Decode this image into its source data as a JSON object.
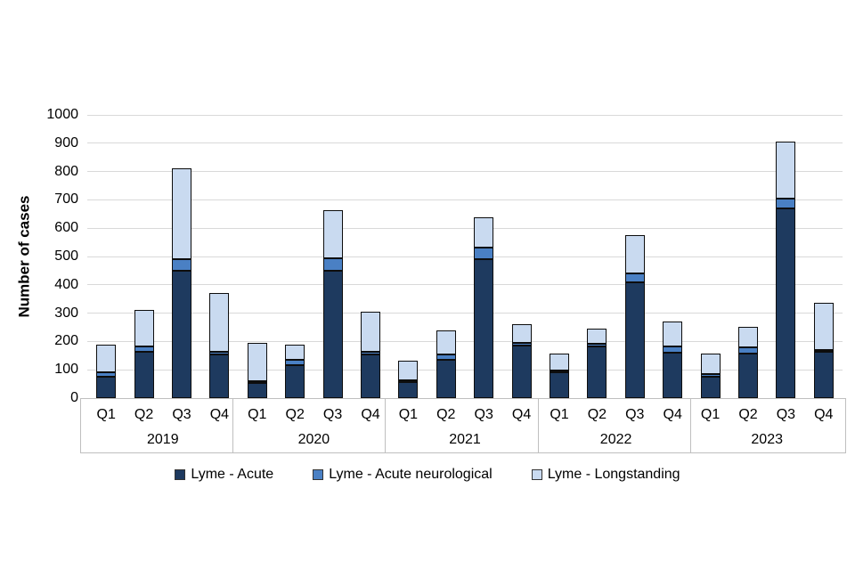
{
  "chart_data": {
    "type": "bar",
    "stacked": true,
    "title": "",
    "xlabel": "",
    "ylabel": "Number of cases",
    "ylim": [
      0,
      1000
    ],
    "ytick_step": 100,
    "ytick_labels": [
      "0",
      "100",
      "200",
      "300",
      "400",
      "500",
      "600",
      "700",
      "800",
      "900",
      "1000"
    ],
    "grid": "horizontal",
    "legend_position": "bottom",
    "years": [
      "2019",
      "2020",
      "2021",
      "2022",
      "2023"
    ],
    "quarters": [
      "Q1",
      "Q2",
      "Q3",
      "Q4"
    ],
    "series": [
      {
        "name": "Lyme - Acute",
        "color": "#1e3a5f",
        "values": [
          75,
          165,
          450,
          155,
          55,
          115,
          450,
          155,
          57,
          135,
          490,
          185,
          90,
          183,
          410,
          160,
          75,
          157,
          670,
          162
        ]
      },
      {
        "name": "Lyme - Acute neurological",
        "color": "#4a80c4",
        "values": [
          15,
          18,
          42,
          8,
          5,
          20,
          45,
          8,
          5,
          20,
          40,
          10,
          7,
          10,
          30,
          22,
          10,
          22,
          35,
          8
        ]
      },
      {
        "name": "Lyme - Longstanding",
        "color": "#c9daf0",
        "values": [
          100,
          129,
          318,
          207,
          135,
          53,
          170,
          142,
          71,
          85,
          108,
          65,
          60,
          53,
          137,
          90,
          73,
          74,
          202,
          165
        ]
      }
    ],
    "totals": [
      190,
      312,
      810,
      370,
      195,
      188,
      665,
      305,
      133,
      240,
      638,
      260,
      157,
      246,
      577,
      272,
      158,
      253,
      907,
      335
    ]
  }
}
